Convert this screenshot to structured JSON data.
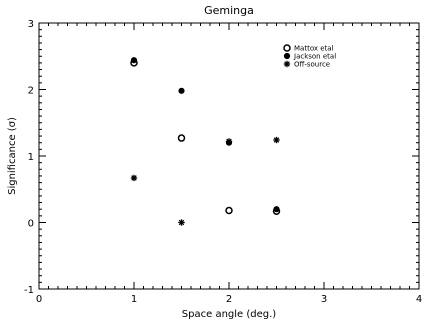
{
  "chart_data": {
    "type": "scatter",
    "title": "Geminga",
    "xlabel": "Space angle (deg.)",
    "ylabel": "Significance (σ)",
    "xlim": [
      0,
      4
    ],
    "ylim": [
      -1,
      3
    ],
    "x_ticks": [
      "0",
      "1",
      "2",
      "3",
      "4"
    ],
    "y_ticks": [
      "-1",
      "0",
      "1",
      "2",
      "3"
    ],
    "x_tick_values": [
      0,
      1,
      2,
      3,
      4
    ],
    "y_tick_values": [
      -1,
      0,
      1,
      2,
      3
    ],
    "grid": false,
    "legend_position": "top-right",
    "series": [
      {
        "name": "Mattox etal",
        "marker": "open-circle",
        "points": [
          {
            "x": 1.0,
            "y": 2.4
          },
          {
            "x": 1.5,
            "y": 1.27
          },
          {
            "x": 2.0,
            "y": 0.18
          },
          {
            "x": 2.5,
            "y": 0.17
          }
        ]
      },
      {
        "name": "Jackson etal",
        "marker": "filled-circle",
        "points": [
          {
            "x": 1.0,
            "y": 2.44
          },
          {
            "x": 1.5,
            "y": 1.98
          },
          {
            "x": 2.0,
            "y": 1.2
          },
          {
            "x": 2.5,
            "y": 0.2
          }
        ]
      },
      {
        "name": "Off-source",
        "marker": "asterisk",
        "points": [
          {
            "x": 1.0,
            "y": 0.67
          },
          {
            "x": 1.5,
            "y": 0.0
          },
          {
            "x": 2.0,
            "y": 1.22
          },
          {
            "x": 2.5,
            "y": 1.24
          }
        ]
      }
    ]
  }
}
